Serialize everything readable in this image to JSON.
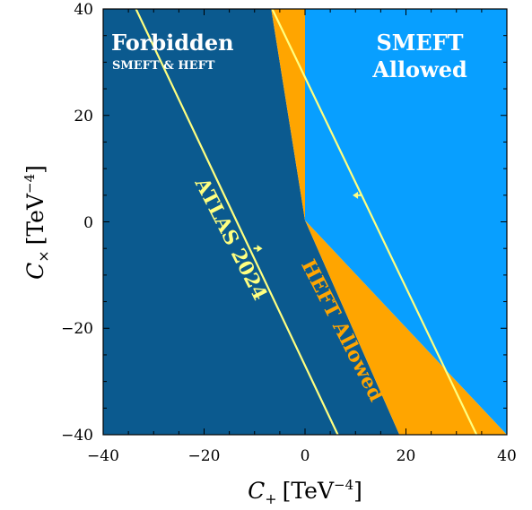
{
  "chart_data": {
    "type": "area",
    "xlabel": "C₊ [TeV⁻⁴]",
    "ylabel": "C× [TeV⁻⁴]",
    "xlim": [
      -40,
      40
    ],
    "ylim": [
      -40,
      40
    ],
    "xticks": [
      -40,
      -20,
      0,
      20,
      40
    ],
    "yticks": [
      -40,
      -20,
      0,
      20,
      40
    ],
    "grid": false,
    "regions": [
      {
        "name": "Forbidden",
        "subtitle": "SMEFT & HEFT",
        "color": "#0b5a8f",
        "polygon": [
          [
            -40,
            -40
          ],
          [
            -40,
            40
          ],
          [
            -6.7,
            40
          ],
          [
            0,
            0.3
          ],
          [
            18.7,
            -40
          ]
        ]
      },
      {
        "name": "HEFT Allowed",
        "color": "#ffa500",
        "polygon": [
          [
            -6.7,
            40
          ],
          [
            0,
            40
          ],
          [
            0,
            0.3
          ],
          [
            40,
            -40
          ],
          [
            18.7,
            -40
          ],
          [
            0,
            0.3
          ]
        ]
      },
      {
        "name": "SMEFT Allowed",
        "color": "#089fff",
        "polygon": [
          [
            0,
            40
          ],
          [
            40,
            40
          ],
          [
            40,
            -40
          ],
          [
            0,
            0.3
          ]
        ]
      }
    ],
    "lines": [
      {
        "name": "ATLAS 2024",
        "color": "#ffff80",
        "points": [
          [
            -33.5,
            40
          ],
          [
            6.5,
            -40
          ]
        ],
        "arrow_at": [
          -9.5,
          -5
        ],
        "arrow_direction": "right"
      },
      {
        "name": "",
        "color": "#ffff80",
        "points": [
          [
            -6.5,
            40
          ],
          [
            34,
            -40
          ]
        ],
        "arrow_at": [
          10.5,
          5
        ],
        "arrow_direction": "left"
      }
    ],
    "annotations": [
      {
        "text": "Forbidden",
        "region": "Forbidden"
      },
      {
        "text": "SMEFT & HEFT",
        "region": "Forbidden"
      },
      {
        "text": "SMEFT",
        "region": "SMEFT Allowed"
      },
      {
        "text": "Allowed",
        "region": "SMEFT Allowed"
      },
      {
        "text": "HEFT Allowed",
        "region": "HEFT Allowed"
      },
      {
        "text": "ATLAS 2024",
        "region": "line"
      }
    ]
  },
  "labels": {
    "forbidden": "Forbidden",
    "forbidden_sub": "SMEFT & HEFT",
    "smeft_1": "SMEFT",
    "smeft_2": "Allowed",
    "heft": "HEFT Allowed",
    "atlas": "ATLAS 2024",
    "xlabel_main": "C",
    "xlabel_sub": "+",
    "xlabel_unit": "[TeV",
    "xlabel_exp": "−4",
    "xlabel_close": "]",
    "ylabel_main": "C",
    "ylabel_sub": "×",
    "ylabel_unit": "[TeV",
    "ylabel_exp": "−4",
    "ylabel_close": "]"
  },
  "tick_labels": {
    "x": [
      "−40",
      "−20",
      "0",
      "20",
      "40"
    ],
    "y": [
      "−40",
      "−20",
      "0",
      "20",
      "40"
    ]
  }
}
